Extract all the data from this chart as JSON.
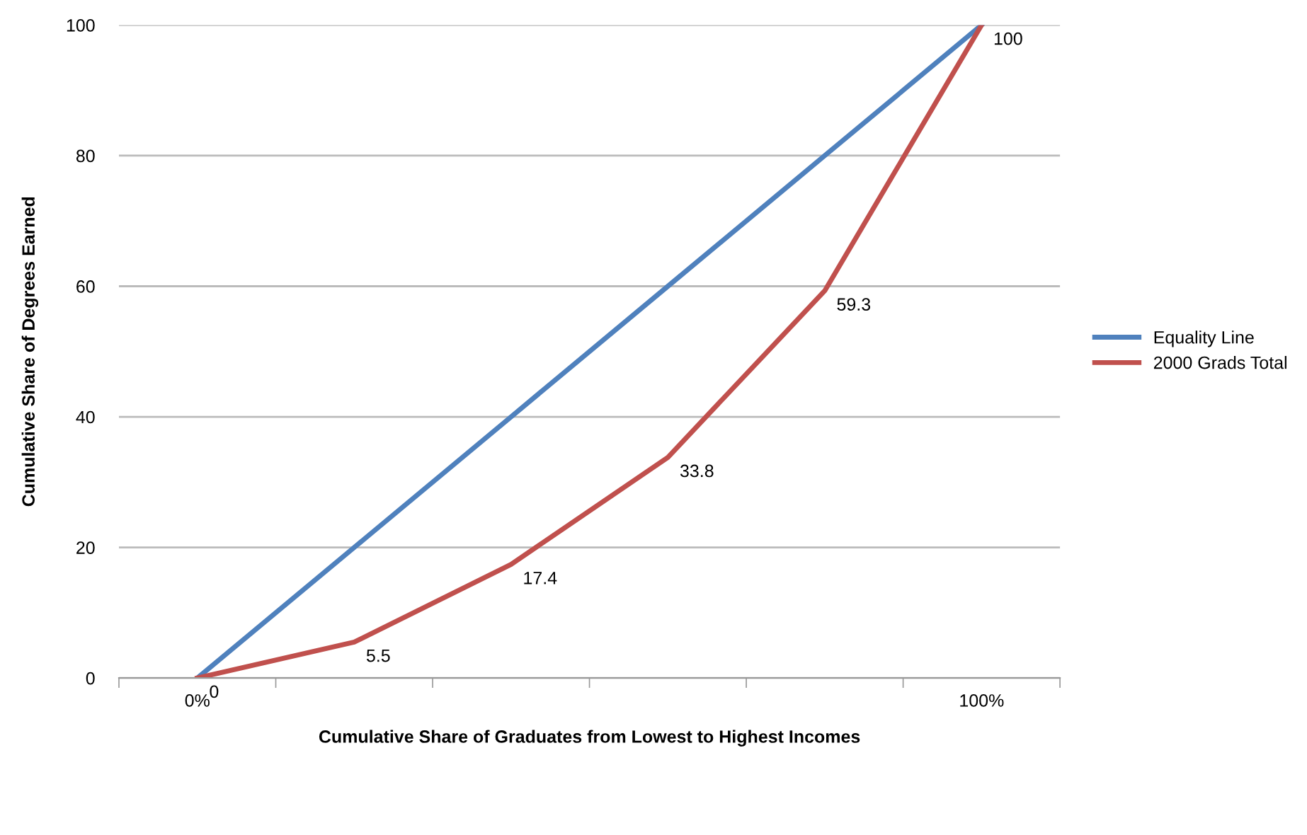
{
  "chart_data": {
    "type": "line",
    "xlabel": "Cumulative Share of Graduates from Lowest to Highest Incomes",
    "ylabel": "Cumulative Share of Degrees Earned",
    "categories": [
      "0%",
      null,
      null,
      null,
      null,
      "100%"
    ],
    "series": [
      {
        "name": "Equality Line",
        "color": "#4f81bd",
        "values": [
          0,
          20,
          40,
          60,
          80,
          100
        ]
      },
      {
        "name": "2000 Grads Total",
        "color": "#c0504d",
        "values": [
          0,
          5.5,
          17.4,
          33.8,
          59.3,
          100
        ],
        "value_labels": [
          "0",
          "5.5",
          "17.4",
          "33.8",
          "59.3",
          "100"
        ]
      }
    ],
    "ylim": [
      0,
      100
    ],
    "yticks": [
      0,
      20,
      40,
      60,
      80,
      100
    ],
    "grid": "y",
    "legend": "right",
    "marker": "none",
    "line_style": "solid"
  }
}
